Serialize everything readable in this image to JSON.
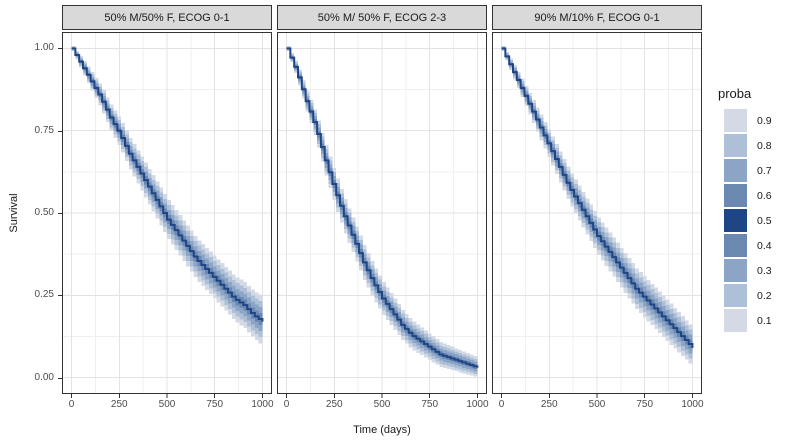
{
  "chart_data": {
    "type": "area",
    "variant": "faceted-survival-fan-chart",
    "title": "",
    "xlabel": "Time (days)",
    "ylabel": "Survival",
    "xlim": [
      0,
      1000
    ],
    "ylim": [
      0,
      1
    ],
    "x_ticks": [
      0,
      250,
      500,
      750,
      1000
    ],
    "x_tick_labels": [
      "0",
      "250",
      "500",
      "750",
      "1000"
    ],
    "x_minor_ticks": [
      125,
      375,
      625,
      875
    ],
    "y_ticks": [
      0,
      0.25,
      0.5,
      0.75,
      1
    ],
    "y_tick_labels": [
      "0.00",
      "0.25",
      "0.50",
      "0.75",
      "1.00"
    ],
    "y_minor_ticks": [
      0.125,
      0.375,
      0.625,
      0.875
    ],
    "grid": "major+minor",
    "legend": {
      "title": "proba",
      "position": "right",
      "entries": [
        {
          "label": "0.9",
          "color": "#d3dae6"
        },
        {
          "label": "0.8",
          "color": "#aec0d8"
        },
        {
          "label": "0.7",
          "color": "#8ca4c5"
        },
        {
          "label": "0.6",
          "color": "#6b88b0"
        },
        {
          "label": "0.5",
          "color": "#1e4686"
        },
        {
          "label": "0.4",
          "color": "#6b88b0"
        },
        {
          "label": "0.3",
          "color": "#8ca4c5"
        },
        {
          "label": "0.2",
          "color": "#aec0d8"
        },
        {
          "label": "0.1",
          "color": "#d3dae6"
        }
      ]
    },
    "style": {
      "band_colors_outer_to_inner": [
        "#d3dae6",
        "#aec0d8",
        "#8ca4c5",
        "#6b88b0"
      ],
      "band_multipliers": [
        1,
        0.74,
        0.49,
        0.24
      ],
      "line_color": "#1e4686",
      "strip_bg": "#d9d9d9",
      "panel_border": "#333333",
      "grid_major": "#e3e3e3",
      "grid_minor": "#efefef",
      "tick_color": "#333333"
    },
    "times": [
      0,
      50,
      100,
      150,
      200,
      250,
      300,
      350,
      400,
      450,
      500,
      550,
      600,
      650,
      700,
      750,
      800,
      850,
      900,
      950,
      1000
    ],
    "facets": [
      {
        "label": "50% M/50% F, ECOG 0-1",
        "median": [
          1.0,
          0.95,
          0.9,
          0.85,
          0.79,
          0.74,
          0.68,
          0.63,
          0.58,
          0.53,
          0.48,
          0.44,
          0.4,
          0.36,
          0.33,
          0.3,
          0.27,
          0.24,
          0.22,
          0.19,
          0.17
        ],
        "half_width": [
          0.008,
          0.02,
          0.028,
          0.034,
          0.04,
          0.044,
          0.048,
          0.051,
          0.054,
          0.057,
          0.059,
          0.061,
          0.062,
          0.063,
          0.064,
          0.065,
          0.066,
          0.068,
          0.07,
          0.072,
          0.075
        ]
      },
      {
        "label": "50% M/ 50% F, ECOG 2-3",
        "median": [
          1.0,
          0.93,
          0.84,
          0.76,
          0.66,
          0.57,
          0.49,
          0.42,
          0.35,
          0.29,
          0.24,
          0.2,
          0.16,
          0.13,
          0.11,
          0.09,
          0.07,
          0.06,
          0.05,
          0.04,
          0.03
        ],
        "half_width": [
          0.008,
          0.022,
          0.032,
          0.04,
          0.046,
          0.05,
          0.052,
          0.053,
          0.053,
          0.052,
          0.05,
          0.048,
          0.046,
          0.044,
          0.042,
          0.04,
          0.038,
          0.036,
          0.034,
          0.032,
          0.03
        ]
      },
      {
        "label": "90% M/10% F, ECOG 0-1",
        "median": [
          1.0,
          0.94,
          0.88,
          0.82,
          0.76,
          0.7,
          0.64,
          0.58,
          0.53,
          0.48,
          0.43,
          0.39,
          0.35,
          0.31,
          0.27,
          0.24,
          0.21,
          0.18,
          0.15,
          0.12,
          0.09
        ],
        "half_width": [
          0.008,
          0.02,
          0.028,
          0.034,
          0.039,
          0.043,
          0.047,
          0.05,
          0.053,
          0.055,
          0.057,
          0.059,
          0.06,
          0.061,
          0.062,
          0.063,
          0.063,
          0.063,
          0.062,
          0.06,
          0.058
        ]
      }
    ]
  }
}
